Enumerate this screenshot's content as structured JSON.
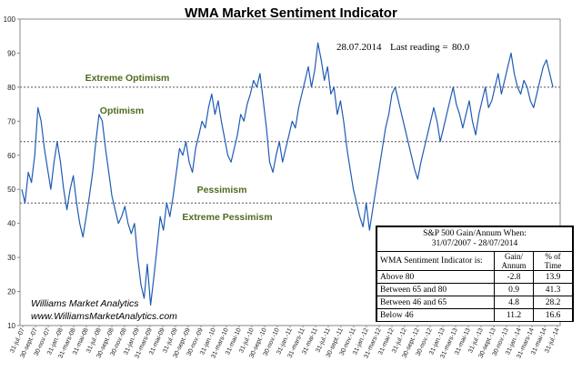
{
  "chart_data": {
    "type": "line",
    "title": "WMA Market Sentiment Indicator",
    "last_reading_date": "28.07.2014",
    "last_reading_label": "Last reading =",
    "last_reading_value": "80.0",
    "ylim": [
      10,
      100
    ],
    "yticks": [
      10,
      20,
      30,
      40,
      50,
      60,
      70,
      80,
      90,
      100
    ],
    "grid": false,
    "line_color": "#1f5bb5",
    "threshold_color": "#555555",
    "zone_label_color": "#4e6b1e",
    "thresholds": [
      {
        "value": 80,
        "label": "Extreme Optimism"
      },
      {
        "value": 64,
        "label": "Optimism"
      },
      {
        "value": 46,
        "label": "Pessimism"
      }
    ],
    "zone_labels": [
      "Extreme Optimism",
      "Optimism",
      "Pessimism",
      "Extreme Pessimism"
    ],
    "x_tick_labels": [
      "31-jul.-07",
      "30-sept.-07",
      "30-nov.-07",
      "31-jan.-08",
      "31-mars-08",
      "31-mai-08",
      "31-jul.-08",
      "30-sept.-08",
      "30-nov.-08",
      "31-jan.-09",
      "31-mars-09",
      "31-mai-09",
      "31-jul.-09",
      "30-sept.-09",
      "30-nov.-09",
      "31-jan.-10",
      "31-mars-10",
      "31-mai-10",
      "31-jul.-10",
      "30-sept.-10",
      "30-nov.-10",
      "31-jan.-11",
      "31-mars-11",
      "31-mai-11",
      "31-jul.-11",
      "30-sept.-11",
      "30-nov.-11",
      "31-jan.-12",
      "31-mars-12",
      "31-mai-12",
      "31-jul.-12",
      "30-sept.-12",
      "30-nov.-12",
      "31-jan.-13",
      "31-mars-13",
      "31-mai-13",
      "31-jul.-13",
      "30-sept.-13",
      "30-nov.-13",
      "31-jan.-14",
      "31-mars-14",
      "31-mai-14",
      "31-jul.-14"
    ],
    "series": [
      {
        "values": [
          [
            0,
            50
          ],
          [
            1,
            46
          ],
          [
            2,
            55
          ],
          [
            3,
            52
          ],
          [
            4,
            60
          ],
          [
            5,
            74
          ],
          [
            6,
            70
          ],
          [
            7,
            62
          ],
          [
            8,
            56
          ],
          [
            9,
            50
          ],
          [
            10,
            58
          ],
          [
            11,
            64
          ],
          [
            12,
            58
          ],
          [
            13,
            50
          ],
          [
            14,
            44
          ],
          [
            15,
            50
          ],
          [
            16,
            54
          ],
          [
            17,
            46
          ],
          [
            18,
            40
          ],
          [
            19,
            36
          ],
          [
            20,
            42
          ],
          [
            21,
            48
          ],
          [
            22,
            55
          ],
          [
            23,
            64
          ],
          [
            24,
            72
          ],
          [
            25,
            70
          ],
          [
            26,
            62
          ],
          [
            27,
            55
          ],
          [
            28,
            48
          ],
          [
            29,
            44
          ],
          [
            30,
            40
          ],
          [
            31,
            42
          ],
          [
            32,
            45
          ],
          [
            33,
            40
          ],
          [
            34,
            37
          ],
          [
            35,
            40
          ],
          [
            36,
            30
          ],
          [
            37,
            22
          ],
          [
            38,
            18
          ],
          [
            39,
            28
          ],
          [
            40,
            16
          ],
          [
            41,
            24
          ],
          [
            42,
            33
          ],
          [
            43,
            42
          ],
          [
            44,
            38
          ],
          [
            45,
            46
          ],
          [
            46,
            42
          ],
          [
            47,
            48
          ],
          [
            48,
            55
          ],
          [
            49,
            62
          ],
          [
            50,
            60
          ],
          [
            51,
            64
          ],
          [
            52,
            58
          ],
          [
            53,
            55
          ],
          [
            54,
            62
          ],
          [
            55,
            66
          ],
          [
            56,
            70
          ],
          [
            57,
            68
          ],
          [
            58,
            74
          ],
          [
            59,
            78
          ],
          [
            60,
            72
          ],
          [
            61,
            76
          ],
          [
            62,
            70
          ],
          [
            63,
            65
          ],
          [
            64,
            60
          ],
          [
            65,
            58
          ],
          [
            66,
            62
          ],
          [
            67,
            66
          ],
          [
            68,
            72
          ],
          [
            69,
            70
          ],
          [
            70,
            75
          ],
          [
            71,
            78
          ],
          [
            72,
            82
          ],
          [
            73,
            80
          ],
          [
            74,
            84
          ],
          [
            75,
            76
          ],
          [
            76,
            68
          ],
          [
            77,
            58
          ],
          [
            78,
            55
          ],
          [
            79,
            60
          ],
          [
            80,
            64
          ],
          [
            81,
            58
          ],
          [
            82,
            62
          ],
          [
            83,
            66
          ],
          [
            84,
            70
          ],
          [
            85,
            68
          ],
          [
            86,
            74
          ],
          [
            87,
            78
          ],
          [
            88,
            82
          ],
          [
            89,
            86
          ],
          [
            90,
            80
          ],
          [
            91,
            85
          ],
          [
            92,
            93
          ],
          [
            93,
            88
          ],
          [
            94,
            82
          ],
          [
            95,
            86
          ],
          [
            96,
            78
          ],
          [
            97,
            80
          ],
          [
            98,
            72
          ],
          [
            99,
            76
          ],
          [
            100,
            70
          ],
          [
            101,
            62
          ],
          [
            102,
            56
          ],
          [
            103,
            50
          ],
          [
            104,
            46
          ],
          [
            105,
            42
          ],
          [
            106,
            39
          ],
          [
            107,
            46
          ],
          [
            108,
            38
          ],
          [
            109,
            44
          ],
          [
            110,
            50
          ],
          [
            111,
            56
          ],
          [
            112,
            62
          ],
          [
            113,
            68
          ],
          [
            114,
            72
          ],
          [
            115,
            78
          ],
          [
            116,
            80
          ],
          [
            117,
            76
          ],
          [
            118,
            72
          ],
          [
            119,
            68
          ],
          [
            120,
            64
          ],
          [
            121,
            60
          ],
          [
            122,
            56
          ],
          [
            123,
            53
          ],
          [
            124,
            58
          ],
          [
            125,
            62
          ],
          [
            126,
            66
          ],
          [
            127,
            70
          ],
          [
            128,
            74
          ],
          [
            129,
            70
          ],
          [
            130,
            64
          ],
          [
            131,
            68
          ],
          [
            132,
            72
          ],
          [
            133,
            76
          ],
          [
            134,
            80
          ],
          [
            135,
            75
          ],
          [
            136,
            72
          ],
          [
            137,
            68
          ],
          [
            138,
            72
          ],
          [
            139,
            76
          ],
          [
            140,
            70
          ],
          [
            141,
            66
          ],
          [
            142,
            72
          ],
          [
            143,
            76
          ],
          [
            144,
            80
          ],
          [
            145,
            74
          ],
          [
            146,
            76
          ],
          [
            147,
            80
          ],
          [
            148,
            84
          ],
          [
            149,
            78
          ],
          [
            150,
            82
          ],
          [
            151,
            86
          ],
          [
            152,
            90
          ],
          [
            153,
            84
          ],
          [
            154,
            80
          ],
          [
            155,
            78
          ],
          [
            156,
            82
          ],
          [
            157,
            80
          ],
          [
            158,
            76
          ],
          [
            159,
            74
          ],
          [
            160,
            78
          ],
          [
            161,
            82
          ],
          [
            162,
            86
          ],
          [
            163,
            88
          ],
          [
            164,
            84
          ],
          [
            165,
            80
          ]
        ]
      }
    ],
    "table": {
      "title_line1": "S&P 500 Gain/Annum When:",
      "title_line2": "31/07/2007 - 28/07/2014",
      "col_indicator": "WMA Sentiment Indicator is:",
      "col_gain": "Gain/ Annum",
      "col_time": "% of Time",
      "rows": [
        {
          "label": "Above 80",
          "gain": "-2.8",
          "time": "13.9"
        },
        {
          "label": "Between 65 and 80",
          "gain": "0.9",
          "time": "41.3"
        },
        {
          "label": "Between 46 and 65",
          "gain": "4.8",
          "time": "28.2"
        },
        {
          "label": "Below 46",
          "gain": "11.2",
          "time": "16.6"
        }
      ]
    },
    "credit_line1": "Williams Market Analytics",
    "credit_line2": "www.WilliamsMarketAnalytics.com"
  }
}
